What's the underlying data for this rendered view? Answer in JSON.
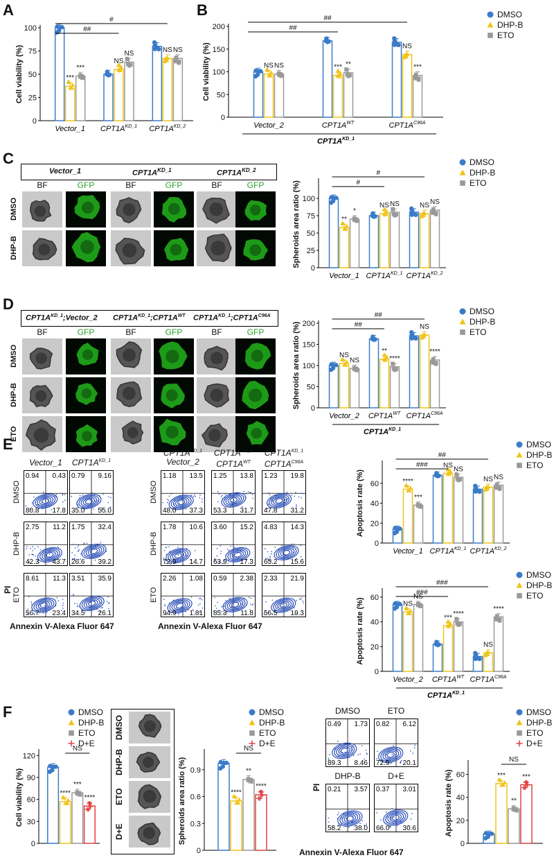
{
  "colors": {
    "dmso": "#3a7bc8",
    "dhpb": "#f0c419",
    "eto": "#999999",
    "de": "#e04040",
    "gfp": "#22b51c",
    "flow": "#2a4fb8"
  },
  "panel_letters": {
    "A": "A",
    "B": "B",
    "C": "C",
    "D": "D",
    "E": "E",
    "F": "F"
  },
  "legend": {
    "dmso": "DMSO",
    "dhpb": "DHP-B",
    "eto": "ETO",
    "de": "D+E"
  },
  "ko_group_label": "CPT1A",
  "ko_group_sup": "KD_1",
  "panel_c": {
    "header": {
      "vector": "Vector_1",
      "kd1": "CPT1A",
      "kd1_sup": "KD_1",
      "kd2": "CPT1A",
      "kd2_sup": "KD_2"
    },
    "col_labels": [
      "BF",
      "GFP",
      "BF",
      "GFP",
      "BF",
      "GFP"
    ],
    "row_labels": [
      "DMSO",
      "DHP-B"
    ]
  },
  "panel_d": {
    "header": {
      "g1a": "CPT1A",
      "g1sup": "KD_1",
      "g1b": ";Vector_2",
      "g2a": "CPT1A",
      "g2sup": "KD_1",
      "g2b": ";CPT1A",
      "g2sup2": "WT",
      "g3a": "CPT1A",
      "g3sup": "KD_1",
      "g3b": ";CPT1A",
      "g3sup2": "C96A"
    },
    "col_labels": [
      "BF",
      "GFP",
      "BF",
      "GFP",
      "BF",
      "GFP"
    ],
    "row_labels": [
      "DMSO",
      "DHP-B",
      "ETO"
    ]
  },
  "panel_e_flow": {
    "col_labels_left": [
      {
        "a": "Vector_1",
        "sup": ""
      },
      {
        "a": "CPT1A",
        "sup": "KD_1"
      }
    ],
    "col_labels_right": [
      {
        "l1": "CPT1A",
        "sup": "KD_1",
        "l2": "Vector_2"
      },
      {
        "l1": "CPT1A",
        "sup": "KD_1",
        "l2": "CPT1A",
        "sup2": "WT"
      },
      {
        "l1": "CPT1A",
        "sup": "KD_1",
        "l2": "CPT1A",
        "sup2": "C96A"
      }
    ],
    "row_labels": [
      "DMSO",
      "DHP-B",
      "ETO"
    ],
    "y_axis": "PI",
    "x_axis": "Annexin V-Alexa Fluor 647",
    "quadrants": [
      [
        [
          "0.94",
          "0.43",
          "80.8",
          "17.8"
        ],
        [
          "0.79",
          "9.16",
          "35.0",
          "55.0"
        ],
        [
          "1.18",
          "13.5",
          "48.0",
          "37.3"
        ],
        [
          "1.25",
          "13.8",
          "53.3",
          "31.7"
        ],
        [
          "1.23",
          "19.8",
          "47.8",
          "31.2"
        ]
      ],
      [
        [
          "2.75",
          "11.2",
          "42.3",
          "43.7"
        ],
        [
          "1.75",
          "32.4",
          "26.6",
          "39.2"
        ],
        [
          "1.78",
          "10.6",
          "72.9",
          "14.7"
        ],
        [
          "3.60",
          "15.2",
          "63.9",
          "17.3"
        ],
        [
          "4.83",
          "14.3",
          "65.2",
          "15.6"
        ]
      ],
      [
        [
          "8.61",
          "11.3",
          "56.7",
          "23.4"
        ],
        [
          "3.51",
          "35.9",
          "34.5",
          "26.1"
        ],
        [
          "2.26",
          "1.08",
          "94.9",
          "1.81"
        ],
        [
          "0.59",
          "2.38",
          "85.3",
          "11.8"
        ],
        [
          "2.33",
          "21.9",
          "56.5",
          "19.3"
        ]
      ]
    ]
  },
  "panel_f": {
    "images_row_labels": [
      "DMSO",
      "DHP-B",
      "ETO",
      "D+E"
    ],
    "flow_labels": [
      "DMSO",
      "ETO",
      "DHP-B",
      "D+E"
    ],
    "flow_quadrants": [
      [
        "0.49",
        "1.73",
        "89.3",
        "8.46"
      ],
      [
        "0.82",
        "6.12",
        "72.9",
        "20.1"
      ],
      [
        "0.21",
        "3.57",
        "58.2",
        "38.0"
      ],
      [
        "0.37",
        "3.01",
        "66.0",
        "30.6"
      ]
    ],
    "flow_y": "PI",
    "flow_x": "Annexin V-Alexa Fluor 647"
  },
  "chart_data": [
    {
      "id": "A",
      "type": "bar",
      "ylabel": "Cell viability (%)",
      "ylim": [
        0,
        100
      ],
      "yticks": [
        0,
        25,
        50,
        75,
        100
      ],
      "categories": [
        {
          "a": "Vector_1",
          "sup": ""
        },
        {
          "a": "CPT1A",
          "sup": "KD_1"
        },
        {
          "a": "CPT1A",
          "sup": "KD_2"
        }
      ],
      "series": [
        {
          "name": "DMSO",
          "values": [
            100,
            50,
            80
          ]
        },
        {
          "name": "DHP-B",
          "values": [
            37,
            55,
            67
          ]
        },
        {
          "name": "ETO",
          "values": [
            48,
            63,
            67
          ]
        }
      ],
      "sig": [
        [
          "",
          "***",
          "***"
        ],
        [
          "",
          "NS",
          "NS"
        ],
        [
          "",
          "NS",
          "NS"
        ]
      ],
      "brackets": [
        {
          "from": 0,
          "to": 1,
          "label": "##"
        },
        {
          "from": 0,
          "to": 2,
          "label": "#"
        }
      ]
    },
    {
      "id": "B",
      "type": "bar",
      "ylabel": "Cell viability (%)",
      "ylim": [
        0,
        200
      ],
      "yticks": [
        0,
        50,
        100,
        150,
        200
      ],
      "categories": [
        {
          "a": "Vector_2",
          "sup": ""
        },
        {
          "a": "CPT1A",
          "sup": "WT"
        },
        {
          "a": "CPT1A",
          "sup": "C96A"
        }
      ],
      "series": [
        {
          "name": "DMSO",
          "values": [
            100,
            168,
            165
          ]
        },
        {
          "name": "DHP-B",
          "values": [
            95,
            92,
            138
          ]
        },
        {
          "name": "ETO",
          "values": [
            95,
            98,
            92
          ]
        }
      ],
      "sig": [
        [
          "",
          "NS",
          "NS"
        ],
        [
          "",
          "***",
          "**"
        ],
        [
          "",
          "NS",
          "***"
        ]
      ],
      "brackets": [
        {
          "from": 0,
          "to": 1,
          "label": "##"
        },
        {
          "from": 0,
          "to": 2,
          "label": "##"
        }
      ]
    },
    {
      "id": "C",
      "type": "bar",
      "ylabel": "Spheroids area ratio (%)",
      "ylim": [
        0,
        125
      ],
      "yticks": [
        0,
        25,
        50,
        75,
        100
      ],
      "categories": [
        {
          "a": "Vector_1",
          "sup": ""
        },
        {
          "a": "CPT1A",
          "sup": "KD_1"
        },
        {
          "a": "CPT1A",
          "sup": "KD_2"
        }
      ],
      "series": [
        {
          "name": "DMSO",
          "values": [
            100,
            75,
            80
          ]
        },
        {
          "name": "DHP-B",
          "values": [
            58,
            78,
            78
          ]
        },
        {
          "name": "ETO",
          "values": [
            70,
            80,
            83
          ]
        }
      ],
      "sig": [
        [
          "",
          "**",
          "*"
        ],
        [
          "",
          "NS",
          "NS"
        ],
        [
          "",
          "NS",
          "NS"
        ]
      ],
      "brackets": [
        {
          "from": 0,
          "to": 1,
          "label": "#"
        },
        {
          "from": 0,
          "to": 2,
          "label": "#"
        }
      ]
    },
    {
      "id": "D",
      "type": "bar",
      "ylabel": "Spheroids area ratio (%)",
      "ylim": [
        0,
        200
      ],
      "yticks": [
        0,
        50,
        100,
        150,
        200
      ],
      "categories": [
        {
          "a": "Vector_2",
          "sup": ""
        },
        {
          "a": "CPT1A",
          "sup": "WT"
        },
        {
          "a": "CPT1A",
          "sup": "C96A"
        }
      ],
      "series": [
        {
          "name": "DMSO",
          "values": [
            100,
            163,
            170
          ]
        },
        {
          "name": "DHP-B",
          "values": [
            105,
            115,
            172
          ]
        },
        {
          "name": "ETO",
          "values": [
            93,
            97,
            113
          ]
        }
      ],
      "sig": [
        [
          "",
          "NS",
          "NS"
        ],
        [
          "",
          "**",
          "****"
        ],
        [
          "",
          "NS",
          "****"
        ]
      ],
      "brackets": [
        {
          "from": 0,
          "to": 1,
          "label": "##"
        },
        {
          "from": 0,
          "to": 2,
          "label": "##"
        }
      ]
    },
    {
      "id": "E1",
      "type": "bar",
      "ylabel": "Apoptosis rate (%)",
      "ylim": [
        0,
        80
      ],
      "yticks": [
        0,
        20,
        40,
        60
      ],
      "categories": [
        {
          "a": "Vector_1",
          "sup": ""
        },
        {
          "a": "CPT1A",
          "sup": "KD_1"
        },
        {
          "a": "CPT1A",
          "sup": "KD_2"
        }
      ],
      "series": [
        {
          "name": "DMSO",
          "values": [
            14,
            68,
            54
          ]
        },
        {
          "name": "DHP-B",
          "values": [
            54,
            70,
            56
          ]
        },
        {
          "name": "ETO",
          "values": [
            38,
            66,
            58
          ]
        }
      ],
      "sig": [
        [
          "",
          "****",
          "***"
        ],
        [
          "",
          "NS",
          "NS"
        ],
        [
          "",
          "NS",
          "NS"
        ]
      ],
      "brackets": [
        {
          "from": 0,
          "to": 1,
          "label": "###"
        },
        {
          "from": 0,
          "to": 2,
          "label": "##"
        }
      ]
    },
    {
      "id": "E2",
      "type": "bar",
      "ylabel": "Apoptosis rate (%)",
      "ylim": [
        0,
        65
      ],
      "yticks": [
        0,
        20,
        40,
        60
      ],
      "categories": [
        {
          "a": "Vector_2",
          "sup": ""
        },
        {
          "a": "CPT1A",
          "sup": "WT"
        },
        {
          "a": "CPT1A",
          "sup": "C96A"
        }
      ],
      "series": [
        {
          "name": "DMSO",
          "values": [
            54,
            22,
            12
          ]
        },
        {
          "name": "DHP-B",
          "values": [
            48,
            37,
            15
          ]
        },
        {
          "name": "ETO",
          "values": [
            54,
            40,
            44
          ]
        }
      ],
      "sig": [
        [
          "",
          "NS",
          "NS"
        ],
        [
          "",
          "***",
          "****"
        ],
        [
          "",
          "NS",
          "****"
        ]
      ],
      "brackets": [
        {
          "from": 0,
          "to": 1,
          "label": "###"
        },
        {
          "from": 0,
          "to": 2,
          "label": "###"
        }
      ]
    },
    {
      "id": "F1",
      "type": "bar",
      "ylabel": "Cell viability (%)",
      "ylim": [
        0,
        125
      ],
      "yticks": [
        0,
        30,
        60,
        90,
        120
      ],
      "series": [
        {
          "name": "DMSO",
          "values": [
            104
          ]
        },
        {
          "name": "DHP-B",
          "values": [
            57
          ]
        },
        {
          "name": "ETO",
          "values": [
            69
          ]
        },
        {
          "name": "D+E",
          "values": [
            51
          ]
        }
      ],
      "sig": [
        "",
        "****",
        "***",
        "****"
      ],
      "ns_label": "NS"
    },
    {
      "id": "F2",
      "type": "bar",
      "ylabel": "Spheroids area ratio (%)",
      "ylim": [
        0,
        1.1
      ],
      "yticks": [
        0.0,
        0.3,
        0.6,
        0.9
      ],
      "series": [
        {
          "name": "DMSO",
          "values": [
            0.97
          ]
        },
        {
          "name": "DHP-B",
          "values": [
            0.55
          ]
        },
        {
          "name": "ETO",
          "values": [
            0.79
          ]
        },
        {
          "name": "D+E",
          "values": [
            0.62
          ]
        }
      ],
      "sig": [
        "",
        "****",
        "**",
        "****"
      ],
      "ns_label": "NS"
    },
    {
      "id": "F3",
      "type": "bar",
      "ylabel": "Apoptosis rate (%)",
      "ylim": [
        0,
        70
      ],
      "yticks": [
        0,
        20,
        40,
        60
      ],
      "series": [
        {
          "name": "DMSO",
          "values": [
            8
          ]
        },
        {
          "name": "DHP-B",
          "values": [
            52
          ]
        },
        {
          "name": "ETO",
          "values": [
            30
          ]
        },
        {
          "name": "D+E",
          "values": [
            51
          ]
        }
      ],
      "sig": [
        "",
        "***",
        "**",
        "***"
      ],
      "ns_label": "NS"
    }
  ]
}
